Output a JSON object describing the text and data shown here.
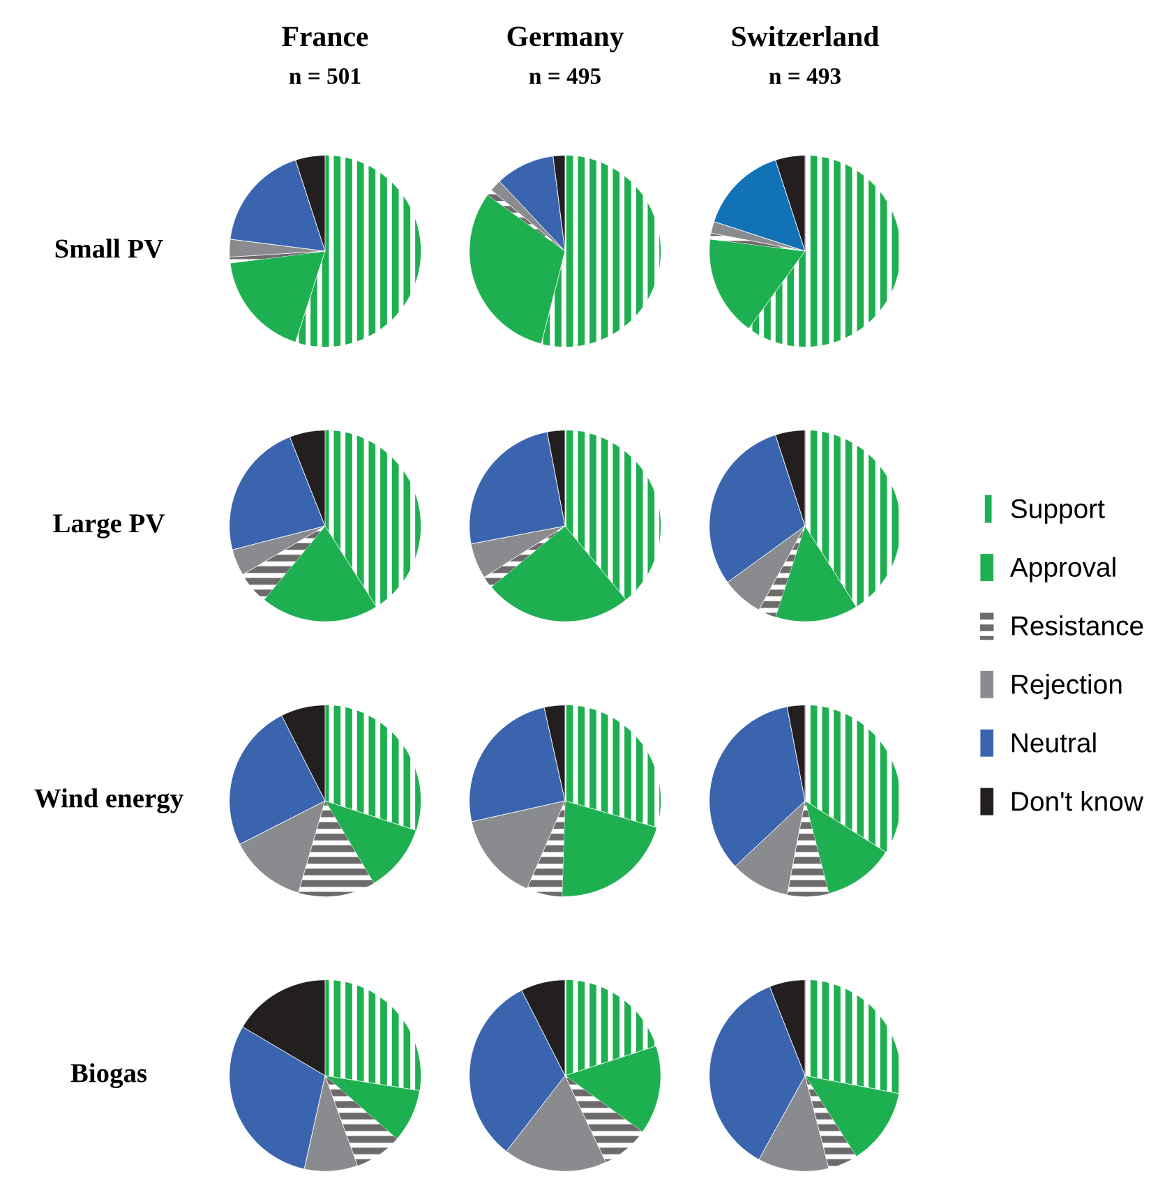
{
  "chart_data": [
    {
      "type": "pie",
      "title": "France",
      "subtitle": "n = 501",
      "ylabel": "Small PV",
      "categories": [
        "Support",
        "Approval",
        "Resistance",
        "Rejection",
        "Neutral",
        "Don't know"
      ],
      "values": [
        55,
        18,
        1,
        3,
        18,
        5
      ],
      "colors": [
        "#1eb050",
        "#1eb050",
        "#6d6a6c",
        "#8a8b8e",
        "#3a65ae",
        "#231f20"
      ],
      "legend": "right"
    },
    {
      "type": "pie",
      "title": "Germany",
      "subtitle": "n = 495",
      "categories": [
        null,
        null,
        null,
        null,
        null,
        null
      ],
      "values": [
        54,
        31,
        1,
        2,
        10,
        2
      ],
      "colors": [
        "#1eb050",
        "#1eb050",
        "#6d6a6c",
        "#8a8b8e",
        "#3a65ae",
        "#231f20"
      ]
    },
    {
      "type": "pie",
      "title": "Switzerland",
      "subtitle": "n = 493",
      "categories": [
        null,
        null,
        null,
        null,
        null,
        null
      ],
      "values": [
        60,
        17,
        1,
        2,
        15,
        5
      ],
      "colors": [
        "#1eb050",
        "#1eb050",
        "#6d6a6c",
        "#8a8b8e",
        "#1272b8",
        "#231f20"
      ]
    },
    {
      "type": "pie",
      "ylabel": "Large PV",
      "categories": [
        null,
        null,
        null,
        null,
        null,
        null
      ],
      "values": [
        41,
        20,
        5.5,
        4.5,
        23,
        6
      ],
      "colors": [
        "#1eb050",
        "#1eb050",
        "#6d6a6c",
        "#8a8b8e",
        "#3a65ae",
        "#231f20"
      ]
    },
    {
      "type": "pie",
      "categories": [
        null,
        null,
        null,
        null,
        null,
        null
      ],
      "values": [
        39,
        25,
        2,
        6,
        25,
        3
      ],
      "colors": [
        "#1eb050",
        "#1eb050",
        "#6d6a6c",
        "#8a8b8e",
        "#3a65ae",
        "#231f20"
      ]
    },
    {
      "type": "pie",
      "categories": [
        null,
        null,
        null,
        null,
        null,
        null
      ],
      "values": [
        41,
        14,
        3,
        7,
        30,
        5
      ],
      "colors": [
        "#1eb050",
        "#1eb050",
        "#6d6a6c",
        "#8a8b8e",
        "#3a65ae",
        "#231f20"
      ]
    },
    {
      "type": "pie",
      "ylabel": "Wind energy",
      "categories": [
        null,
        null,
        null,
        null,
        null,
        null
      ],
      "values": [
        30,
        11.5,
        13,
        13,
        25,
        7.5
      ],
      "colors": [
        "#1eb050",
        "#1eb050",
        "#6d6a6c",
        "#8a8b8e",
        "#3a65ae",
        "#231f20"
      ]
    },
    {
      "type": "pie",
      "categories": [
        null,
        null,
        null,
        null,
        null,
        null
      ],
      "values": [
        29.5,
        21,
        6,
        15,
        25,
        3.5
      ],
      "colors": [
        "#1eb050",
        "#1eb050",
        "#6d6a6c",
        "#8a8b8e",
        "#3a65ae",
        "#231f20"
      ]
    },
    {
      "type": "pie",
      "categories": [
        null,
        null,
        null,
        null,
        null,
        null
      ],
      "values": [
        34,
        12,
        7,
        10,
        34,
        3
      ],
      "colors": [
        "#1eb050",
        "#1eb050",
        "#6d6a6c",
        "#8a8b8e",
        "#3a65ae",
        "#231f20"
      ]
    },
    {
      "type": "pie",
      "ylabel": "Biogas",
      "categories": [
        null,
        null,
        null,
        null,
        null,
        null
      ],
      "values": [
        27.5,
        9,
        8,
        9,
        30,
        16.5
      ],
      "colors": [
        "#1eb050",
        "#1eb050",
        "#6d6a6c",
        "#8a8b8e",
        "#3a65ae",
        "#231f20"
      ]
    },
    {
      "type": "pie",
      "categories": [
        null,
        null,
        null,
        null,
        null,
        null
      ],
      "values": [
        20,
        15,
        8,
        17.5,
        32,
        7.5
      ],
      "colors": [
        "#1eb050",
        "#1eb050",
        "#6d6a6c",
        "#8a8b8e",
        "#3a65ae",
        "#231f20"
      ]
    },
    {
      "type": "pie",
      "categories": [
        null,
        null,
        null,
        null,
        null,
        null
      ],
      "values": [
        28,
        13,
        5,
        12,
        36,
        6
      ],
      "colors": [
        "#1eb050",
        "#1eb050",
        "#6d6a6c",
        "#8a8b8e",
        "#3a65ae",
        "#231f20"
      ]
    }
  ]
}
